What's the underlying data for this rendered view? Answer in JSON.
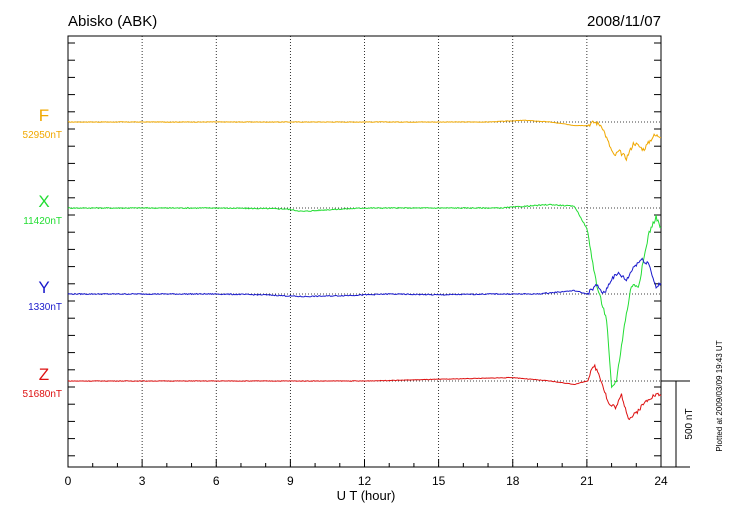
{
  "header": {
    "station": "Abisko (ABK)",
    "date": "2008/11/07"
  },
  "plotted_note": "Plotted at 2009/03/09 19:43 UT",
  "scale_bar_label": "500 nT",
  "chart_data": {
    "type": "line",
    "title": "Abisko (ABK)",
    "date": "2008/11/07",
    "xlabel": "U T (hour)",
    "xlim": [
      0,
      24
    ],
    "x_ticks": [
      "0",
      "3",
      "6",
      "9",
      "12",
      "15",
      "18",
      "21",
      "24"
    ],
    "grid": "dotted vertical lines every 3 hours; dotted baseline per component",
    "scale_bar_nT": 500,
    "colors": {
      "F": "#f0a800",
      "X": "#22dd33",
      "Y": "#1a1acc",
      "Z": "#dd1111"
    },
    "series": [
      {
        "name": "F",
        "baseline_label": "52950nT",
        "color": "#f0a800",
        "x": [
          0,
          3,
          6,
          9,
          12,
          15,
          17,
          18.5,
          19.5,
          20.5,
          21,
          21.3,
          21.6,
          21.9,
          22.1,
          22.3,
          22.6,
          22.9,
          23.3,
          23.7,
          24
        ],
        "offset": [
          0,
          0,
          0,
          0,
          0,
          0,
          0,
          10,
          0,
          -20,
          -20,
          0,
          -20,
          -130,
          -200,
          -170,
          -210,
          -120,
          -160,
          -80,
          -80
        ]
      },
      {
        "name": "X",
        "baseline_label": "11420nT",
        "color": "#22dd33",
        "x": [
          0,
          3,
          6,
          8.8,
          9.5,
          10.5,
          12,
          14,
          16,
          17.5,
          18.5,
          19.5,
          20.5,
          21,
          21.4,
          21.8,
          22,
          22.2,
          22.5,
          22.8,
          23.1,
          23.5,
          23.8,
          24
        ],
        "offset": [
          0,
          0,
          0,
          -5,
          -20,
          -10,
          0,
          0,
          0,
          0,
          10,
          20,
          10,
          -120,
          -450,
          -650,
          -1050,
          -1000,
          -700,
          -450,
          -450,
          -150,
          -50,
          -120
        ]
      },
      {
        "name": "Y",
        "baseline_label": "1330nT",
        "color": "#1a1acc",
        "x": [
          0,
          3,
          6,
          8,
          9.5,
          11,
          13,
          15,
          17,
          19,
          20.5,
          21,
          21.4,
          21.7,
          22,
          22.3,
          22.6,
          22.9,
          23.2,
          23.5,
          23.8,
          24
        ],
        "offset": [
          0,
          0,
          0,
          -5,
          -15,
          -10,
          0,
          -5,
          0,
          0,
          20,
          0,
          50,
          0,
          90,
          120,
          80,
          160,
          200,
          180,
          40,
          60
        ]
      },
      {
        "name": "Z",
        "baseline_label": "51680nT",
        "color": "#dd1111",
        "x": [
          0,
          3,
          6,
          9,
          12,
          15,
          18,
          19.5,
          20.5,
          21,
          21.3,
          21.5,
          21.9,
          22.2,
          22.4,
          22.7,
          22.9,
          23.2,
          23.5,
          23.8,
          24
        ],
        "offset": [
          0,
          0,
          0,
          0,
          0,
          10,
          20,
          0,
          -20,
          0,
          90,
          40,
          -140,
          -150,
          -80,
          -220,
          -200,
          -150,
          -100,
          -80,
          -80
        ]
      }
    ]
  }
}
